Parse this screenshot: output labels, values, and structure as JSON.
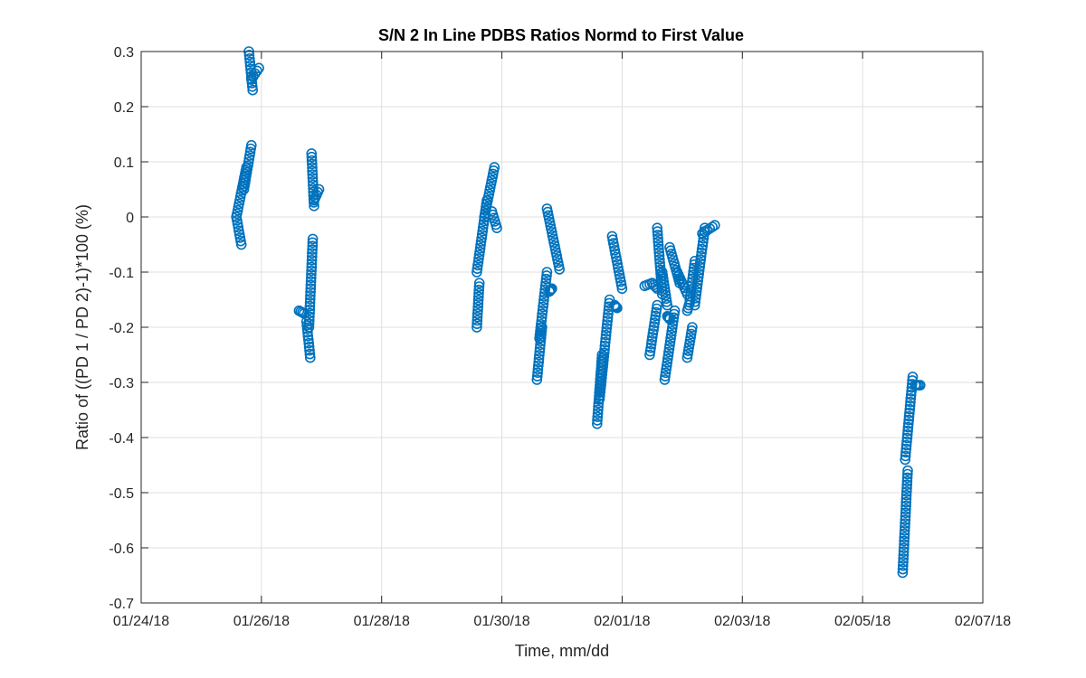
{
  "chart_data": {
    "type": "scatter",
    "title": "S/N 2 In Line PDBS Ratios Normd to First Value",
    "xlabel": "Time, mm/dd",
    "ylabel": "Ratio of ((PD 1 / PD 2)-1)*100 (%)",
    "x_ticks": [
      "01/24/18",
      "01/26/18",
      "01/28/18",
      "01/30/18",
      "02/01/18",
      "02/03/18",
      "02/05/18",
      "02/07/18"
    ],
    "xlim": [
      "01/24/18",
      "02/07/18"
    ],
    "y_ticks": [
      "-0.7",
      "-0.6",
      "-0.5",
      "-0.4",
      "-0.3",
      "-0.2",
      "-0.1",
      "0",
      "0.1",
      "0.2",
      "0.3"
    ],
    "ylim": [
      -0.7,
      0.3
    ],
    "grid": true,
    "marker": "open-circle",
    "color": "#0072bd",
    "series": [
      {
        "segments": [
          {
            "x0": "01/25/18 14:00",
            "x1": "01/25/18 16:00",
            "y0": 0.0,
            "y1": -0.05
          },
          {
            "x0": "01/25/18 14:00",
            "x1": "01/25/18 18:00",
            "y0": 0.0,
            "y1": 0.09
          },
          {
            "x0": "01/25/18 17:00",
            "x1": "01/25/18 20:00",
            "y0": 0.05,
            "y1": 0.13
          },
          {
            "x0": "01/25/18 19:00",
            "x1": "01/25/18 20:30",
            "y0": 0.3,
            "y1": 0.23
          },
          {
            "x0": "01/25/18 20:00",
            "x1": "01/25/18 23:00",
            "y0": 0.25,
            "y1": 0.27
          },
          {
            "x0": "01/26/18 15:00",
            "x1": "01/26/18 17:00",
            "y0": -0.17,
            "y1": -0.175
          },
          {
            "x0": "01/26/18 18:00",
            "x1": "01/26/18 19:30",
            "y0": -0.19,
            "y1": -0.255
          },
          {
            "x0": "01/26/18 19:00",
            "x1": "01/26/18 20:30",
            "y0": -0.2,
            "y1": -0.04
          },
          {
            "x0": "01/26/18 20:00",
            "x1": "01/26/18 21:00",
            "y0": 0.115,
            "y1": 0.02
          },
          {
            "x0": "01/26/18 21:00",
            "x1": "01/26/18 23:00",
            "y0": 0.03,
            "y1": 0.05
          },
          {
            "x0": "01/29/18 14:00",
            "x1": "01/29/18 15:00",
            "y0": -0.2,
            "y1": -0.12
          },
          {
            "x0": "01/29/18 14:00",
            "x1": "01/29/18 18:00",
            "y0": -0.1,
            "y1": 0.03
          },
          {
            "x0": "01/29/18 17:00",
            "x1": "01/29/18 21:00",
            "y0": 0.0,
            "y1": 0.09
          },
          {
            "x0": "01/29/18 20:00",
            "x1": "01/29/18 22:00",
            "y0": 0.01,
            "y1": -0.02
          },
          {
            "x0": "01/30/18 14:00",
            "x1": "01/30/18 16:00",
            "y0": -0.295,
            "y1": -0.2
          },
          {
            "x0": "01/30/18 15:00",
            "x1": "01/30/18 18:00",
            "y0": -0.22,
            "y1": -0.1
          },
          {
            "x0": "01/30/18 19:00",
            "x1": "01/30/18 20:00",
            "y0": -0.135,
            "y1": -0.13
          },
          {
            "x0": "01/30/18 18:00",
            "x1": "01/30/18 23:00",
            "y0": 0.015,
            "y1": -0.095
          },
          {
            "x0": "01/31/18 14:00",
            "x1": "01/31/18 16:00",
            "y0": -0.375,
            "y1": -0.25
          },
          {
            "x0": "01/31/18 15:00",
            "x1": "01/31/18 19:00",
            "y0": -0.33,
            "y1": -0.15
          },
          {
            "x0": "01/31/18 21:00",
            "x1": "01/31/18 22:00",
            "y0": -0.16,
            "y1": -0.165
          },
          {
            "x0": "01/31/18 20:00",
            "x1": "02/01/18 00:00",
            "y0": -0.035,
            "y1": -0.13
          },
          {
            "x0": "02/01/18 09:00",
            "x1": "02/01/18 12:00",
            "y0": -0.125,
            "y1": -0.12
          },
          {
            "x0": "02/01/18 11:00",
            "x1": "02/01/18 14:00",
            "y0": -0.25,
            "y1": -0.16
          },
          {
            "x0": "02/01/18 12:00",
            "x1": "02/01/18 14:00",
            "y0": -0.12,
            "y1": -0.13
          },
          {
            "x0": "02/01/18 14:00",
            "x1": "02/01/18 16:00",
            "y0": -0.02,
            "y1": -0.14
          },
          {
            "x0": "02/01/18 16:00",
            "x1": "02/01/18 18:00",
            "y0": -0.1,
            "y1": -0.16
          },
          {
            "x0": "02/01/18 18:00",
            "x1": "02/01/18 19:00",
            "y0": -0.18,
            "y1": -0.185
          },
          {
            "x0": "02/01/18 17:00",
            "x1": "02/01/18 21:00",
            "y0": -0.295,
            "y1": -0.17
          },
          {
            "x0": "02/01/18 19:00",
            "x1": "02/01/18 23:00",
            "y0": -0.055,
            "y1": -0.12
          },
          {
            "x0": "02/01/18 22:00",
            "x1": "02/02/18 02:00",
            "y0": -0.1,
            "y1": -0.14
          },
          {
            "x0": "02/02/18 02:00",
            "x1": "02/02/18 03:00",
            "y0": -0.17,
            "y1": -0.155
          },
          {
            "x0": "02/02/18 02:00",
            "x1": "02/02/18 04:00",
            "y0": -0.255,
            "y1": -0.2
          },
          {
            "x0": "02/02/18 03:00",
            "x1": "02/02/18 05:00",
            "y0": -0.15,
            "y1": -0.08
          },
          {
            "x0": "02/02/18 05:00",
            "x1": "02/02/18 09:00",
            "y0": -0.16,
            "y1": -0.02
          },
          {
            "x0": "02/02/18 08:00",
            "x1": "02/02/18 13:00",
            "y0": -0.03,
            "y1": -0.015
          },
          {
            "x0": "02/05/18 16:00",
            "x1": "02/05/18 18:00",
            "y0": -0.645,
            "y1": -0.46
          },
          {
            "x0": "02/05/18 17:00",
            "x1": "02/05/18 20:00",
            "y0": -0.44,
            "y1": -0.29
          },
          {
            "x0": "02/05/18 21:00",
            "x1": "02/05/18 23:00",
            "y0": -0.305,
            "y1": -0.305
          }
        ]
      }
    ]
  }
}
